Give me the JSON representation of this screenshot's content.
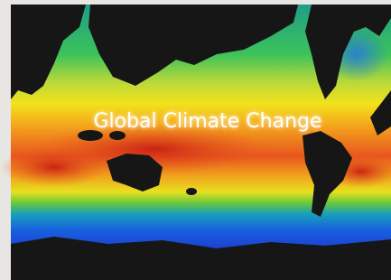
{
  "title": "Global Climate Change"
}
